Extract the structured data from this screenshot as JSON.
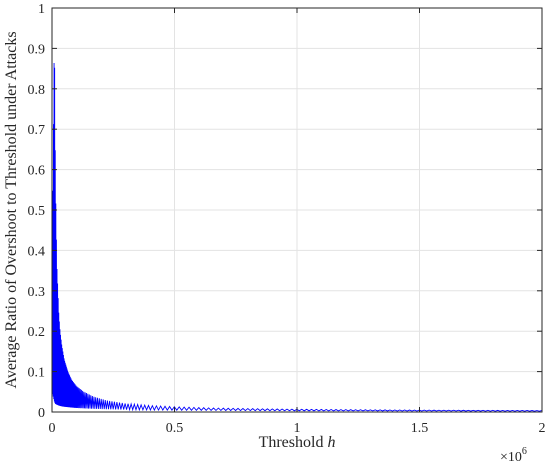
{
  "chart_data": {
    "type": "line",
    "title": "",
    "xlabel": "Threshold",
    "xlabel_var": "h",
    "ylabel": "Average Ratio of Overshoot to Threshold under Attacks",
    "x_exponent_base": "×10",
    "x_exponent_power": "6",
    "xlim": [
      0,
      2000000
    ],
    "ylim": [
      0,
      1
    ],
    "x_ticks": [
      0,
      500000,
      1000000,
      1500000,
      2000000
    ],
    "x_tick_labels": [
      "0",
      "0.5",
      "1",
      "1.5",
      "2"
    ],
    "y_ticks": [
      0,
      0.1,
      0.2,
      0.3,
      0.4,
      0.5,
      0.6,
      0.7,
      0.8,
      0.9,
      1
    ],
    "y_tick_labels": [
      "0",
      "0.1",
      "0.2",
      "0.3",
      "0.4",
      "0.5",
      "0.6",
      "0.7",
      "0.8",
      "0.9",
      "1"
    ],
    "grid": true,
    "legend": "none",
    "color": "#0000ff",
    "series": [
      {
        "x": [
          0,
          8000,
          10000,
          12000,
          14000,
          17000,
          20000,
          24000,
          28000,
          33000,
          40000,
          50000,
          65000,
          80000,
          100000,
          130000,
          170000,
          220000,
          300000,
          400000,
          500000,
          650000,
          800000,
          1000000,
          1250000,
          1500000,
          1750000,
          2000000
        ],
        "upper": [
          0.3,
          0.85,
          0.92,
          0.75,
          0.58,
          0.46,
          0.36,
          0.3,
          0.24,
          0.2,
          0.165,
          0.13,
          0.1,
          0.08,
          0.064,
          0.05,
          0.038,
          0.029,
          0.021,
          0.016,
          0.013,
          0.01,
          0.0085,
          0.0068,
          0.0056,
          0.0047,
          0.0041,
          0.0036
        ],
        "lower": [
          0.05,
          0.03,
          0.025,
          0.022,
          0.02,
          0.019,
          0.018,
          0.017,
          0.016,
          0.015,
          0.014,
          0.013,
          0.012,
          0.011,
          0.01,
          0.009,
          0.008,
          0.007,
          0.006,
          0.005,
          0.0045,
          0.004,
          0.0035,
          0.003,
          0.0027,
          0.0024,
          0.0022,
          0.002
        ]
      }
    ]
  }
}
